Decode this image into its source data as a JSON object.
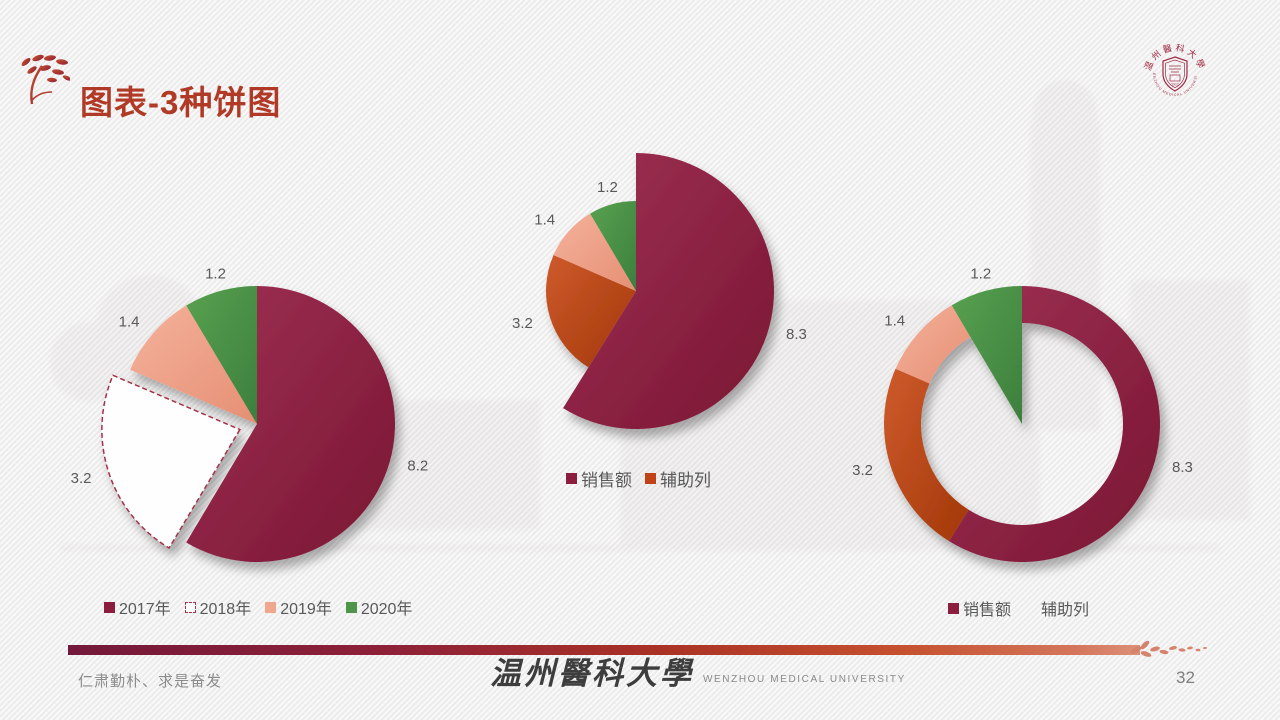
{
  "slide": {
    "title": "图表-3种饼图",
    "motto": "仁肃勤朴、求是奋发",
    "university_cn": "温州醫科大學",
    "university_en": "WENZHOU MEDICAL UNIVERSITY",
    "seal_cn": "温州醫科大學",
    "seal_en": "WENZHOU MEDICAL UNIVERSITY",
    "seal_year": "1912",
    "page_number": "32"
  },
  "colors": {
    "title": "#B03A26",
    "maroon": "#8B1D3F",
    "orange": "#BF4316",
    "salmon": "#EFA78E",
    "green": "#4E9449",
    "label_text": "#595959",
    "legend_text": "#595959",
    "seal_red": "#9E2B43"
  },
  "chart_data": [
    {
      "type": "pie",
      "name": "exploded-pie",
      "categories": [
        "2017年",
        "2018年",
        "2019年",
        "2020年"
      ],
      "values": [
        8.2,
        3.2,
        1.4,
        1.2
      ],
      "data_labels": [
        "8.2",
        "3.2",
        "1.4",
        "1.2"
      ],
      "slice_styles": [
        "maroon",
        "dashed-white",
        "salmon",
        "green"
      ],
      "explode_index": 1,
      "start_angle": 0,
      "direction": "clockwise",
      "legend_position": "bottom",
      "legend": [
        {
          "label": "2017年",
          "swatch": "maroon"
        },
        {
          "label": "2018年",
          "swatch": "dashed-white"
        },
        {
          "label": "2019年",
          "swatch": "salmon"
        },
        {
          "label": "2020年",
          "swatch": "green"
        }
      ]
    },
    {
      "type": "pie",
      "name": "variable-radius-pie",
      "categories": [
        "销售额",
        "辅助列",
        "辅助列",
        "辅助列"
      ],
      "values": [
        8.3,
        3.2,
        1.4,
        1.2
      ],
      "data_labels": [
        "8.3",
        "3.2",
        "1.4",
        "1.2"
      ],
      "slice_styles": [
        "maroon",
        "orange",
        "salmon",
        "green"
      ],
      "large_slice_index": 0,
      "start_angle": 0,
      "direction": "clockwise",
      "legend_position": "bottom",
      "legend": [
        {
          "label": "销售额",
          "swatch": "maroon"
        },
        {
          "label": "辅助列",
          "swatch": "orange"
        }
      ]
    },
    {
      "type": "doughnut",
      "name": "doughnut-with-pie-slice",
      "categories": [
        "销售额",
        "辅助列",
        "辅助列",
        "辅助列"
      ],
      "values": [
        8.3,
        3.2,
        1.4,
        1.2
      ],
      "data_labels": [
        "8.3",
        "3.2",
        "1.4",
        "1.2"
      ],
      "slice_styles": [
        "maroon",
        "orange",
        "salmon",
        "green"
      ],
      "pie_slice_index": 3,
      "start_angle": 0,
      "direction": "clockwise",
      "legend_position": "bottom",
      "legend": [
        {
          "label": "销售额",
          "swatch": "maroon"
        },
        {
          "label": "辅助列",
          "swatch": "white"
        }
      ]
    }
  ]
}
